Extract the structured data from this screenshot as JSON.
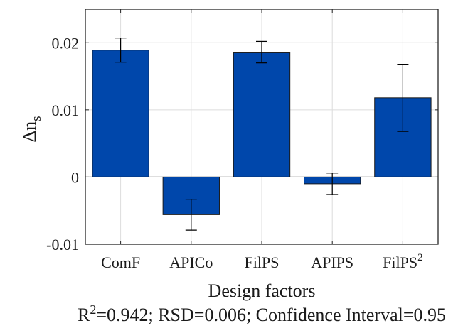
{
  "chart_data": {
    "type": "bar",
    "categories": [
      "ComF",
      "APICo",
      "FilPS",
      "APIPS",
      "FilPS"
    ],
    "category_superscripts": [
      "",
      "",
      "",
      "",
      "2"
    ],
    "values": [
      0.0189,
      -0.0056,
      0.0186,
      -0.001,
      0.0118
    ],
    "error_low": [
      0.0171,
      -0.0079,
      0.017,
      -0.0026,
      0.0068
    ],
    "error_high": [
      0.0207,
      -0.0033,
      0.0202,
      0.0006,
      0.0168
    ],
    "ylim": [
      -0.01,
      0.025
    ],
    "yticks": [
      -0.01,
      0,
      0.01,
      0.02
    ],
    "ytick_labels": [
      "-0.01",
      "0",
      "0.01",
      "0.02"
    ],
    "ylabel": "Δn",
    "ylabel_subscript": "s",
    "xlabel": "Design factors",
    "grid": true,
    "bar_color": "#0047ab",
    "note": {
      "r_prefix": "R",
      "r_superscript": "2",
      "text": "=0.942; RSD=0.006; Confidence Interval=0.95"
    }
  }
}
